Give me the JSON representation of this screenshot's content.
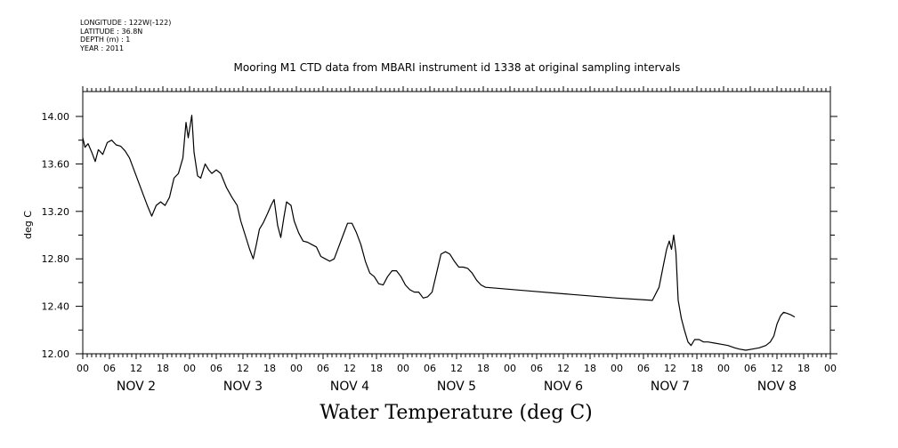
{
  "header": {
    "longitude": "LONGITUDE : 122W(-122)",
    "latitude": "LATITUDE : 36.8N",
    "depth": "DEPTH (m) : 1",
    "year": "YEAR : 2011"
  },
  "chart_data": {
    "type": "line",
    "title": "Mooring M1 CTD data from MBARI instrument id 1338 at original sampling intervals",
    "xlabel": "Water Temperature (deg C)",
    "ylabel": "deg C",
    "xlim_hours": [
      0,
      168
    ],
    "ylim": [
      12.0,
      14.1
    ],
    "y_ticks": [
      "12.00",
      "12.40",
      "12.80",
      "13.20",
      "13.60",
      "14.00"
    ],
    "x_hour_ticks": [
      "00",
      "06",
      "12",
      "18",
      "00",
      "06",
      "12",
      "18",
      "00",
      "06",
      "12",
      "18",
      "00",
      "06",
      "12",
      "18",
      "00",
      "06",
      "12",
      "18",
      "00",
      "06",
      "12",
      "18",
      "00",
      "06",
      "12",
      "18",
      "00"
    ],
    "day_labels": [
      "NOV 2",
      "NOV 3",
      "NOV 4",
      "NOV 5",
      "NOV 6",
      "NOV 7",
      "NOV 8"
    ],
    "series": [
      {
        "values": [
          [
            0,
            13.82
          ],
          [
            0.5,
            13.74
          ],
          [
            1.2,
            13.77
          ],
          [
            2,
            13.7
          ],
          [
            2.8,
            13.62
          ],
          [
            3.5,
            13.72
          ],
          [
            4.5,
            13.68
          ],
          [
            5.5,
            13.78
          ],
          [
            6.5,
            13.8
          ],
          [
            7.5,
            13.76
          ],
          [
            8.5,
            13.75
          ],
          [
            9.5,
            13.71
          ],
          [
            10.5,
            13.65
          ],
          [
            11.5,
            13.55
          ],
          [
            12.5,
            13.45
          ],
          [
            13.5,
            13.35
          ],
          [
            14.5,
            13.25
          ],
          [
            15.5,
            13.16
          ],
          [
            16.5,
            13.25
          ],
          [
            17.5,
            13.28
          ],
          [
            18.5,
            13.25
          ],
          [
            19.5,
            13.32
          ],
          [
            20.5,
            13.48
          ],
          [
            21.5,
            13.52
          ],
          [
            22.5,
            13.65
          ],
          [
            23.2,
            13.95
          ],
          [
            23.7,
            13.82
          ],
          [
            24.5,
            14.01
          ],
          [
            25,
            13.7
          ],
          [
            25.8,
            13.5
          ],
          [
            26.5,
            13.48
          ],
          [
            27.5,
            13.6
          ],
          [
            28.3,
            13.55
          ],
          [
            29,
            13.52
          ],
          [
            30,
            13.55
          ],
          [
            31,
            13.52
          ],
          [
            32.3,
            13.4
          ],
          [
            33.5,
            13.32
          ],
          [
            34.7,
            13.25
          ],
          [
            35.5,
            13.12
          ],
          [
            36.5,
            13.0
          ],
          [
            37.5,
            12.88
          ],
          [
            38.3,
            12.8
          ],
          [
            39,
            12.92
          ],
          [
            39.7,
            13.05
          ],
          [
            40.5,
            13.1
          ],
          [
            41.5,
            13.18
          ],
          [
            42.3,
            13.25
          ],
          [
            43,
            13.3
          ],
          [
            43.8,
            13.08
          ],
          [
            44.5,
            12.98
          ],
          [
            45.2,
            13.15
          ],
          [
            45.8,
            13.28
          ],
          [
            46.8,
            13.25
          ],
          [
            47.5,
            13.12
          ],
          [
            48.5,
            13.02
          ],
          [
            49.5,
            12.95
          ],
          [
            50.5,
            12.94
          ],
          [
            51.5,
            12.92
          ],
          [
            52.5,
            12.9
          ],
          [
            53.5,
            12.82
          ],
          [
            54.5,
            12.8
          ],
          [
            55.5,
            12.78
          ],
          [
            56.5,
            12.8
          ],
          [
            57.5,
            12.9
          ],
          [
            58.5,
            13.0
          ],
          [
            59.5,
            13.1
          ],
          [
            60.5,
            13.1
          ],
          [
            61.5,
            13.02
          ],
          [
            62.5,
            12.92
          ],
          [
            63.5,
            12.78
          ],
          [
            64.5,
            12.68
          ],
          [
            65.5,
            12.65
          ],
          [
            66.5,
            12.59
          ],
          [
            67.5,
            12.58
          ],
          [
            68.5,
            12.65
          ],
          [
            69.5,
            12.7
          ],
          [
            70.5,
            12.7
          ],
          [
            71.5,
            12.65
          ],
          [
            72.5,
            12.58
          ],
          [
            73.5,
            12.54
          ],
          [
            74.5,
            12.52
          ],
          [
            75.5,
            12.52
          ],
          [
            76.5,
            12.47
          ],
          [
            77.5,
            12.48
          ],
          [
            78.5,
            12.52
          ],
          [
            79.5,
            12.68
          ],
          [
            80.5,
            12.84
          ],
          [
            81.5,
            12.86
          ],
          [
            82.5,
            12.84
          ],
          [
            83.5,
            12.78
          ],
          [
            84.5,
            12.73
          ],
          [
            85.5,
            12.73
          ],
          [
            86.5,
            12.72
          ],
          [
            87.5,
            12.68
          ],
          [
            88.5,
            12.62
          ],
          [
            89.5,
            12.58
          ],
          [
            90.5,
            12.56
          ],
          [
            100,
            12.53
          ],
          [
            110,
            12.5
          ],
          [
            120,
            12.47
          ],
          [
            128,
            12.45
          ],
          [
            129.5,
            12.56
          ],
          [
            130.5,
            12.75
          ],
          [
            131.2,
            12.88
          ],
          [
            131.8,
            12.95
          ],
          [
            132.3,
            12.88
          ],
          [
            132.8,
            13.0
          ],
          [
            133.3,
            12.85
          ],
          [
            133.8,
            12.45
          ],
          [
            134.5,
            12.3
          ],
          [
            135.2,
            12.2
          ],
          [
            136,
            12.1
          ],
          [
            136.7,
            12.07
          ],
          [
            137.5,
            12.12
          ],
          [
            138.5,
            12.12
          ],
          [
            139.5,
            12.1
          ],
          [
            140.5,
            12.1
          ],
          [
            142,
            12.09
          ],
          [
            143.5,
            12.08
          ],
          [
            145,
            12.07
          ],
          [
            146.5,
            12.05
          ],
          [
            147.5,
            12.04
          ],
          [
            149,
            12.03
          ],
          [
            150.5,
            12.04
          ],
          [
            152,
            12.05
          ],
          [
            153.5,
            12.07
          ],
          [
            154.5,
            12.1
          ],
          [
            155.3,
            12.15
          ],
          [
            156,
            12.25
          ],
          [
            156.8,
            12.32
          ],
          [
            157.5,
            12.35
          ],
          [
            158.3,
            12.34
          ],
          [
            159,
            12.33
          ],
          [
            160,
            12.31
          ]
        ]
      }
    ]
  }
}
